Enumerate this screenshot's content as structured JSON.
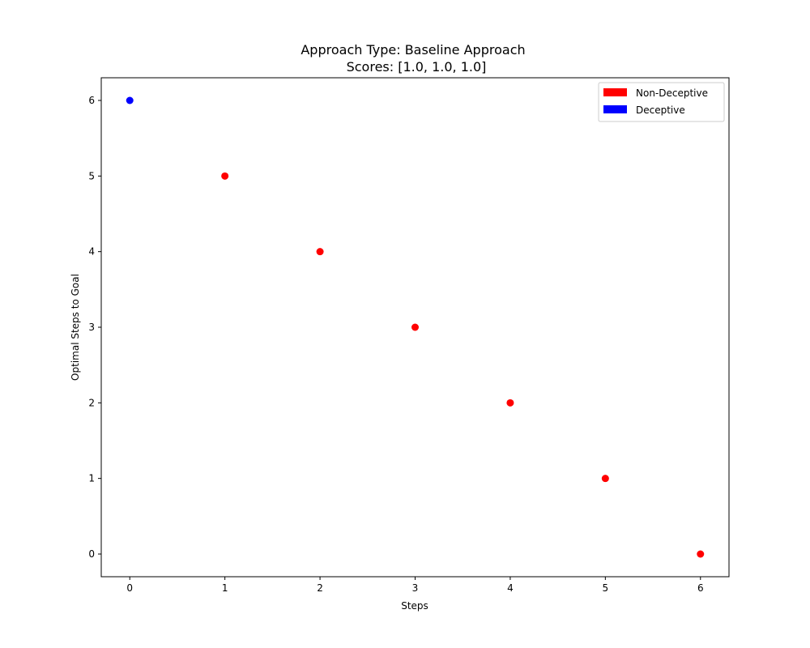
{
  "chart_data": {
    "type": "scatter",
    "title": "Approach Type: Baseline Approach",
    "subtitle": "Scores: [1.0, 1.0, 1.0]",
    "xlabel": "Steps",
    "ylabel": "Optimal Steps to Goal",
    "xlim": [
      -0.3,
      6.3
    ],
    "ylim": [
      -0.3,
      6.3
    ],
    "xticks": [
      "0",
      "1",
      "2",
      "3",
      "4",
      "5",
      "6"
    ],
    "yticks": [
      "0",
      "1",
      "2",
      "3",
      "4",
      "5",
      "6"
    ],
    "grid": false,
    "legend_position": "top-right",
    "legend": [
      {
        "label": "Non-Deceptive",
        "color": "#ff0000"
      },
      {
        "label": "Deceptive",
        "color": "#0000ff"
      }
    ],
    "points": [
      {
        "x": 0,
        "y": 6,
        "class": "Deceptive",
        "color": "#0000ff"
      },
      {
        "x": 1,
        "y": 5,
        "class": "Non-Deceptive",
        "color": "#ff0000"
      },
      {
        "x": 2,
        "y": 4,
        "class": "Non-Deceptive",
        "color": "#ff0000"
      },
      {
        "x": 3,
        "y": 3,
        "class": "Non-Deceptive",
        "color": "#ff0000"
      },
      {
        "x": 4,
        "y": 2,
        "class": "Non-Deceptive",
        "color": "#ff0000"
      },
      {
        "x": 5,
        "y": 1,
        "class": "Non-Deceptive",
        "color": "#ff0000"
      },
      {
        "x": 6,
        "y": 0,
        "class": "Non-Deceptive",
        "color": "#ff0000"
      }
    ]
  }
}
